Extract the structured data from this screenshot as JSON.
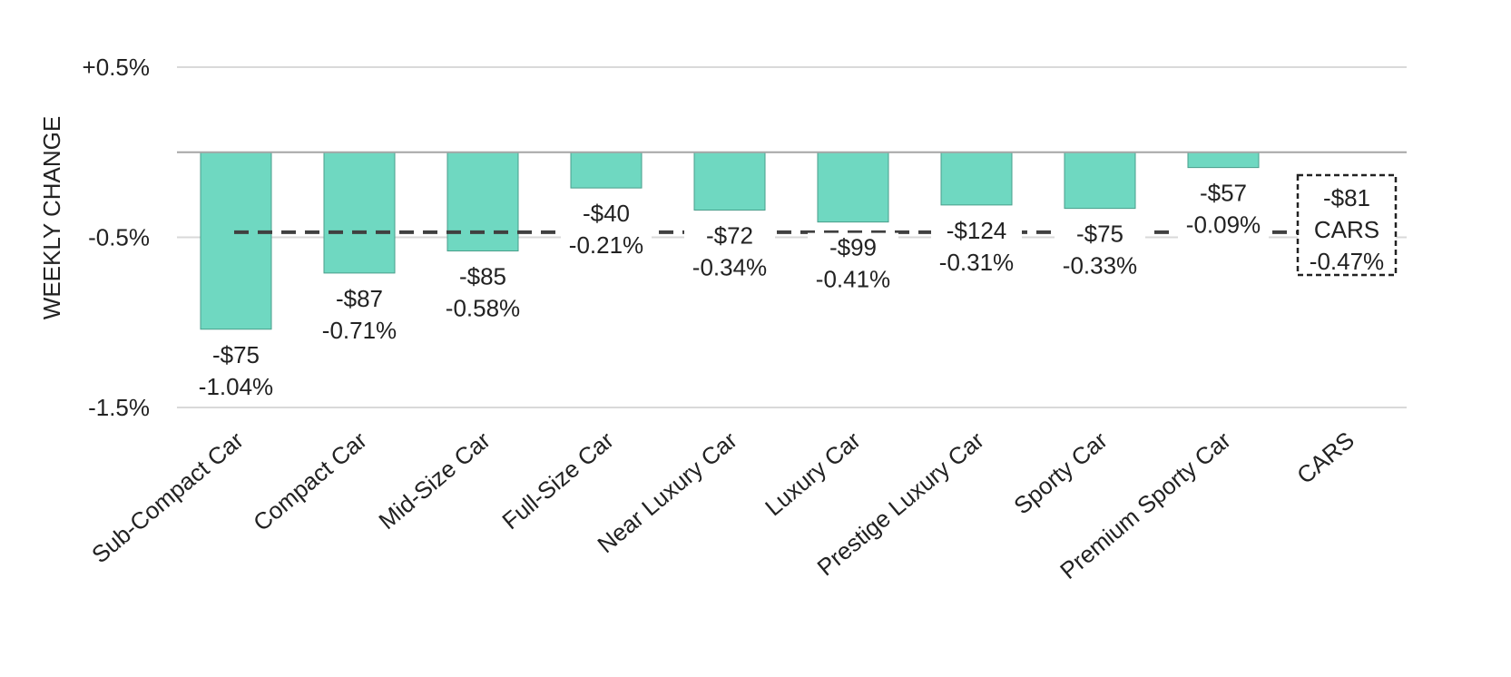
{
  "chart_data": {
    "type": "bar",
    "ylabel": "WEEKLY CHANGE",
    "ylim": [
      -1.5,
      0.5
    ],
    "yticks": [
      {
        "value": 0.5,
        "label": "+0.5%"
      },
      {
        "value": -0.5,
        "label": "-0.5%"
      },
      {
        "value": -1.5,
        "label": "-1.5%"
      }
    ],
    "grid": true,
    "categories": [
      "Sub-Compact Car",
      "Compact Car",
      "Mid-Size Car",
      "Full-Size Car",
      "Near Luxury Car",
      "Luxury Car",
      "Prestige Luxury Car",
      "Sporty Car",
      "Premium Sporty Car",
      "CARS"
    ],
    "values": [
      -1.04,
      -0.71,
      -0.58,
      -0.21,
      -0.34,
      -0.41,
      -0.31,
      -0.33,
      -0.09,
      null
    ],
    "dollar_labels": [
      "-$75",
      "-$87",
      "-$85",
      "-$40",
      "-$72",
      "-$99",
      "-$124",
      "-$75",
      "-$57",
      "-$81"
    ],
    "pct_labels": [
      "-1.04%",
      "-0.71%",
      "-0.58%",
      "-0.21%",
      "-0.34%",
      "-0.41%",
      "-0.31%",
      "-0.33%",
      "-0.09%",
      "-0.47%"
    ],
    "reference": {
      "value": -0.47,
      "dollar": "-$81",
      "label": "CARS",
      "pct": "-0.47%"
    },
    "colors": {
      "bar": "#6fd8c1",
      "bar_edge": "#4a9e8b",
      "grid": "#d9d9d9",
      "zero": "#a6a6a6",
      "reference_line": "#404040"
    }
  }
}
